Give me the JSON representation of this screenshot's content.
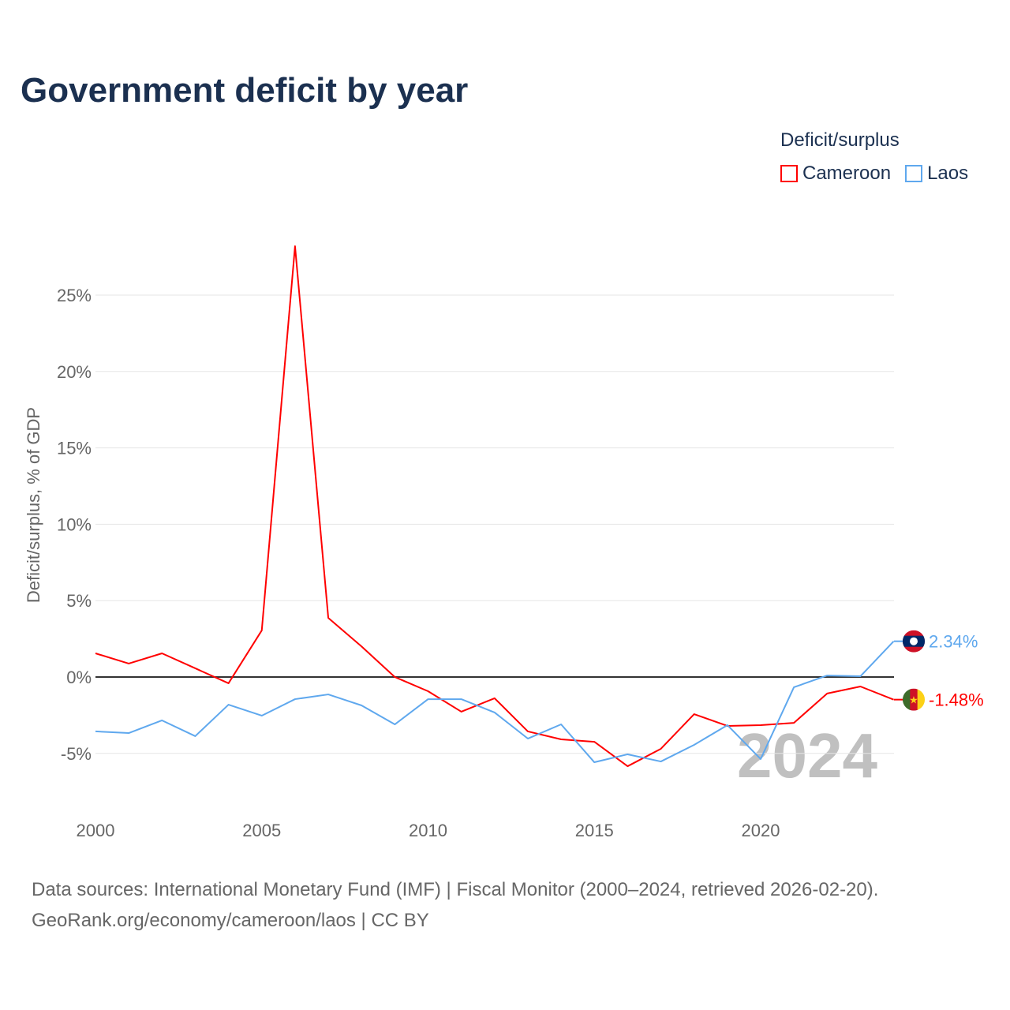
{
  "title": "Government deficit by year",
  "legend": {
    "title": "Deficit/surplus",
    "items": [
      {
        "label": "Cameroon",
        "color": "#ff0000"
      },
      {
        "label": "Laos",
        "color": "#5fa8ee"
      }
    ]
  },
  "year_watermark": "2024",
  "source_line1": "Data sources: International Monetary Fund (IMF) | Fiscal Monitor (2000–2024, retrieved 2026-02-20).",
  "source_line2": "GeoRank.org/economy/cameroon/laos | CC BY",
  "chart_data": {
    "type": "line",
    "title": "Government deficit by year",
    "xlabel": "",
    "ylabel": "Deficit/surplus, % of GDP",
    "xlim": [
      2000,
      2024
    ],
    "ylim": [
      -8.5,
      30
    ],
    "x_ticks": [
      2000,
      2005,
      2010,
      2015,
      2020
    ],
    "x_tick_labels": [
      "2000",
      "2005",
      "2010",
      "2015",
      "2020"
    ],
    "y_ticks": [
      -5,
      0,
      5,
      10,
      15,
      20,
      25
    ],
    "y_tick_labels": [
      "-5%",
      "0%",
      "5%",
      "10%",
      "15%",
      "20%",
      "25%"
    ],
    "grid": true,
    "legend_position": "top-right",
    "x": [
      2000,
      2001,
      2002,
      2003,
      2004,
      2005,
      2006,
      2007,
      2008,
      2009,
      2010,
      2011,
      2012,
      2013,
      2014,
      2015,
      2016,
      2017,
      2018,
      2019,
      2020,
      2021,
      2022,
      2023,
      2024
    ],
    "series": [
      {
        "name": "Cameroon",
        "color": "#ff0000",
        "end_label": "-1.48%",
        "values": [
          1.55,
          0.88,
          1.55,
          0.57,
          -0.41,
          3.05,
          28.2,
          3.87,
          2.0,
          0.0,
          -0.93,
          -2.27,
          -1.39,
          -3.56,
          -4.08,
          -4.24,
          -5.84,
          -4.7,
          -2.43,
          -3.2,
          -3.15,
          -3.0,
          -1.08,
          -0.62,
          -1.48
        ]
      },
      {
        "name": "Laos",
        "color": "#5fa8ee",
        "end_label": "2.34%",
        "values": [
          -3.56,
          -3.67,
          -2.84,
          -3.87,
          -1.81,
          -2.53,
          -1.45,
          -1.14,
          -1.86,
          -3.1,
          -1.45,
          -1.45,
          -2.32,
          -4.03,
          -3.1,
          -5.58,
          -5.06,
          -5.53,
          -4.44,
          -3.15,
          -5.37,
          -0.67,
          0.1,
          0.05,
          2.34
        ]
      }
    ]
  }
}
